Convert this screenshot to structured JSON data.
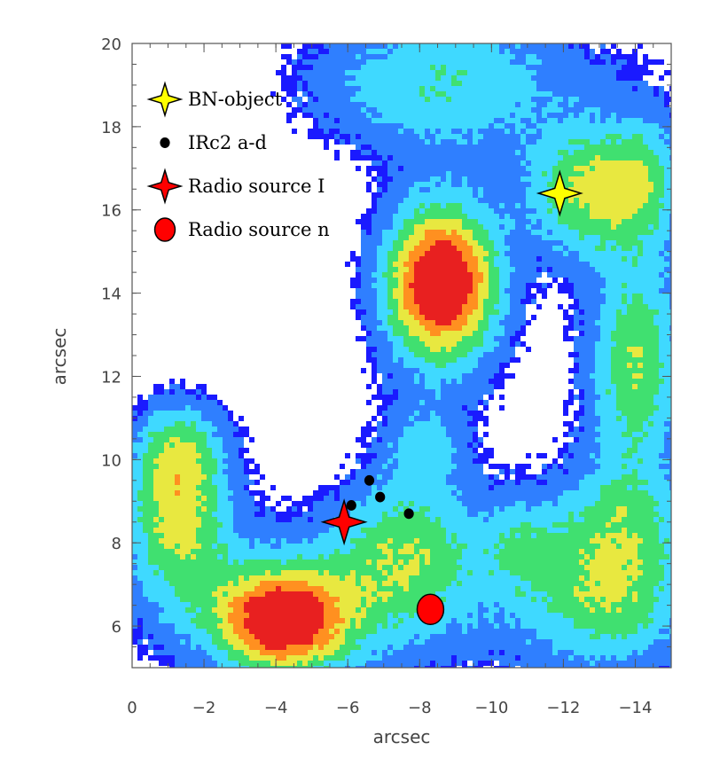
{
  "chart_data": {
    "type": "heatmap",
    "title": "",
    "xlabel": "arcsec",
    "ylabel": "arcsec",
    "xlim": [
      0,
      -15
    ],
    "ylim": [
      5,
      20
    ],
    "x_ticks": [
      "0",
      "−2",
      "−4",
      "−6",
      "−8",
      "−10",
      "−12",
      "−14"
    ],
    "x_tick_values": [
      0,
      -2,
      -4,
      -6,
      -8,
      -10,
      -12,
      -14
    ],
    "y_ticks": [
      "6",
      "8",
      "10",
      "12",
      "14",
      "16",
      "18",
      "20"
    ],
    "y_tick_values": [
      6,
      8,
      10,
      12,
      14,
      16,
      18,
      20
    ],
    "colormap": [
      "#1a1aff",
      "#2f7fff",
      "#3fd9ff",
      "#40e070",
      "#e8e840",
      "#ff9020",
      "#e82020"
    ],
    "legend_position": "top-left",
    "legend": [
      {
        "label": "BN-object",
        "marker": "star-4",
        "color": "#ffff00"
      },
      {
        "label": "IRc2 a-d",
        "marker": "dot",
        "color": "#000000"
      },
      {
        "label": "Radio source I",
        "marker": "star-4",
        "color": "#ff0000"
      },
      {
        "label": "Radio source n",
        "marker": "circle",
        "color": "#ff0000"
      }
    ],
    "markers": [
      {
        "name": "BN-object",
        "x": -11.9,
        "y": 16.4
      },
      {
        "name": "IRc2 a",
        "x": -6.1,
        "y": 8.9
      },
      {
        "name": "IRc2 b",
        "x": -6.6,
        "y": 9.5
      },
      {
        "name": "IRc2 c",
        "x": -6.9,
        "y": 9.1
      },
      {
        "name": "IRc2 d",
        "x": -7.7,
        "y": 8.7
      },
      {
        "name": "Radio source I",
        "x": -5.9,
        "y": 8.5
      },
      {
        "name": "Radio source n",
        "x": -8.3,
        "y": 6.4
      }
    ],
    "emission_regions": [
      {
        "x": -8.6,
        "y": 14.3,
        "peak": 0.95,
        "w": 1.1,
        "h": 1.3
      },
      {
        "x": -7.6,
        "y": 7.9,
        "peak": 0.45,
        "w": 1.5,
        "h": 1.4
      },
      {
        "x": -4.2,
        "y": 6.1,
        "peak": 0.9,
        "w": 1.3,
        "h": 0.9
      },
      {
        "x": -1.2,
        "y": 8.7,
        "peak": 0.45,
        "w": 1.0,
        "h": 1.4
      },
      {
        "x": -1.3,
        "y": 10.3,
        "peak": 0.3,
        "w": 0.9,
        "h": 0.8
      },
      {
        "x": -8.1,
        "y": 10.4,
        "peak": 0.25,
        "w": 0.8,
        "h": 0.7
      },
      {
        "x": -14.0,
        "y": 12.0,
        "peak": 0.5,
        "w": 1.0,
        "h": 1.8
      },
      {
        "x": -12.5,
        "y": 16.4,
        "peak": 0.55,
        "w": 1.2,
        "h": 1.1
      },
      {
        "x": -13.4,
        "y": 6.6,
        "peak": 0.35,
        "w": 1.6,
        "h": 1.2
      },
      {
        "x": -13.6,
        "y": 8.6,
        "peak": 0.25,
        "w": 1.4,
        "h": 0.9
      },
      {
        "x": -8.2,
        "y": 19.0,
        "peak": 0.25,
        "w": 2.6,
        "h": 1.3
      },
      {
        "x": -14.3,
        "y": 16.8,
        "peak": 0.3,
        "w": 0.8,
        "h": 1.0
      },
      {
        "x": -10.8,
        "y": 8.0,
        "peak": 0.2,
        "w": 0.7,
        "h": 0.8
      }
    ]
  }
}
